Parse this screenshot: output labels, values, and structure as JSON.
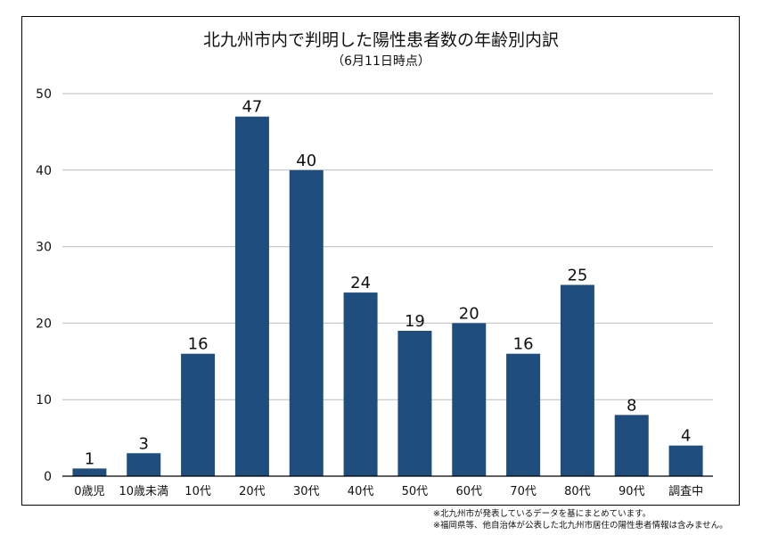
{
  "chart_data": {
    "type": "bar",
    "title": "北九州市内で判明した陽性患者数の年齢別内訳",
    "subtitle": "（6月11日時点）",
    "categories": [
      "0歳児",
      "10歳未満",
      "10代",
      "20代",
      "30代",
      "40代",
      "50代",
      "60代",
      "70代",
      "80代",
      "90代",
      "調査中"
    ],
    "values": [
      1,
      3,
      16,
      47,
      40,
      24,
      19,
      20,
      16,
      25,
      8,
      4
    ],
    "ylim": [
      0,
      50
    ],
    "yticks": [
      0,
      10,
      20,
      30,
      40,
      50
    ],
    "grid": true,
    "data_labels": true,
    "bar_color": "#1F4E7E"
  },
  "notes": [
    "※北九州市が発表しているデータを基にまとめています。",
    "※福岡県等、他自治体が公表した北九州市居住の陽性患者情報は含みません。"
  ]
}
